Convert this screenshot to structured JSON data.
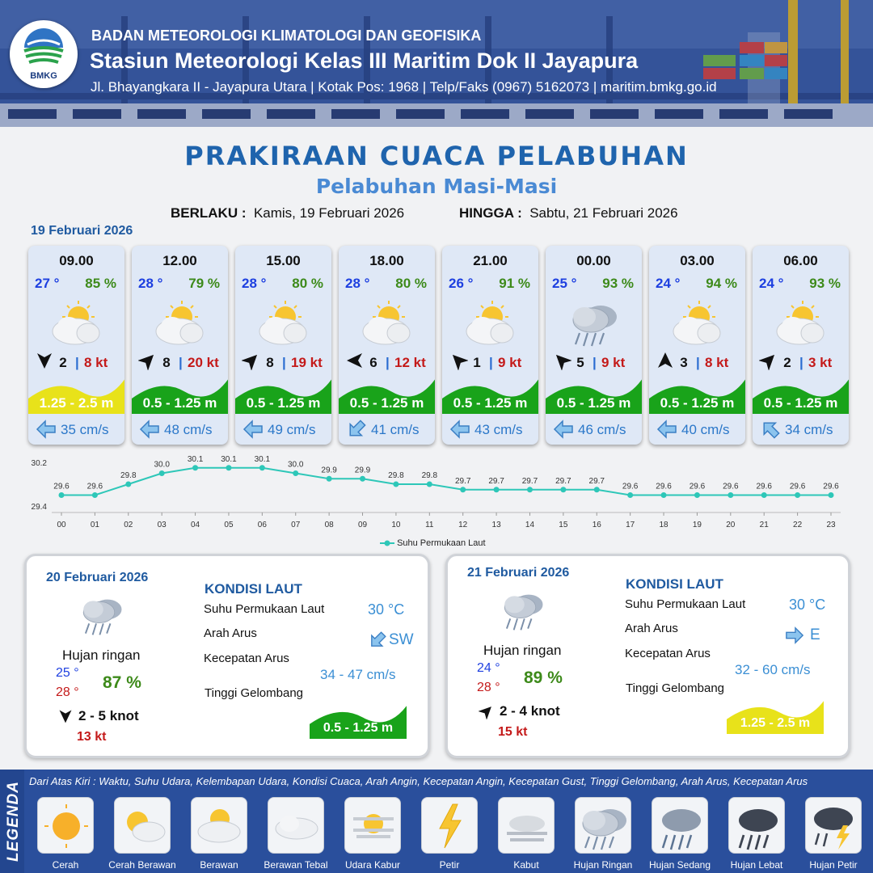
{
  "header": {
    "logo_text": "BMKG",
    "agency": "BADAN METEOROLOGI KLIMATOLOGI DAN GEOFISIKA",
    "station": "Stasiun Meteorologi Kelas III Maritim Dok II Jayapura",
    "address": "Jl. Bhayangkara II - Jayapura Utara | Kotak Pos: 1968 | Telp/Faks (0967) 5162073 | maritim.bmkg.go.id"
  },
  "title": "PRAKIRAAN CUACA PELABUHAN",
  "subtitle": "Pelabuhan Masi-Masi",
  "validity": {
    "from_label": "BERLAKU :",
    "from_value": "Kamis, 19 Februari 2026",
    "to_label": "HINGGA :",
    "to_value": "Sabtu, 21 Februari 2026"
  },
  "day1_label": "19 Februari 2026",
  "forecasts": [
    {
      "time": "09.00",
      "temp": "27 °",
      "hum": "85 %",
      "icon": "cerah-berawan",
      "wind_dir": "south-arrow",
      "wind": "2",
      "gust": "8 kt",
      "wave": "1.25 - 2.5 m",
      "wave_color": "#e8e21a",
      "cur_dir": "west-arrow",
      "current": "35 cm/s"
    },
    {
      "time": "12.00",
      "temp": "28 °",
      "hum": "79 %",
      "icon": "cerah-berawan",
      "wind_dir": "northeast-arrow",
      "wind": "8",
      "gust": "20 kt",
      "wave": "0.5 - 1.25 m",
      "wave_color": "#19a31a",
      "cur_dir": "west-arrow",
      "current": "48 cm/s"
    },
    {
      "time": "15.00",
      "temp": "28 °",
      "hum": "80 %",
      "icon": "cerah-berawan",
      "wind_dir": "northeast-arrow",
      "wind": "8",
      "gust": "19 kt",
      "wave": "0.5 - 1.25 m",
      "wave_color": "#19a31a",
      "cur_dir": "west-arrow",
      "current": "49 cm/s"
    },
    {
      "time": "18.00",
      "temp": "28 °",
      "hum": "80 %",
      "icon": "cerah-berawan",
      "wind_dir": "west-arrow",
      "wind": "6",
      "gust": "12 kt",
      "wave": "0.5 - 1.25 m",
      "wave_color": "#19a31a",
      "cur_dir": "southwest-arrow",
      "current": "41 cm/s"
    },
    {
      "time": "21.00",
      "temp": "26 °",
      "hum": "91 %",
      "icon": "cerah-berawan",
      "wind_dir": "northwest-arrow",
      "wind": "1",
      "gust": "9 kt",
      "wave": "0.5 - 1.25 m",
      "wave_color": "#19a31a",
      "cur_dir": "west-arrow",
      "current": "43 cm/s"
    },
    {
      "time": "00.00",
      "temp": "25 °",
      "hum": "93 %",
      "icon": "hujan-ringan",
      "wind_dir": "northwest-arrow",
      "wind": "5",
      "gust": "9 kt",
      "wave": "0.5 - 1.25 m",
      "wave_color": "#19a31a",
      "cur_dir": "west-arrow",
      "current": "46 cm/s"
    },
    {
      "time": "03.00",
      "temp": "24 °",
      "hum": "94 %",
      "icon": "cerah-berawan",
      "wind_dir": "north-arrow",
      "wind": "3",
      "gust": "8 kt",
      "wave": "0.5 - 1.25 m",
      "wave_color": "#19a31a",
      "cur_dir": "west-arrow",
      "current": "40 cm/s"
    },
    {
      "time": "06.00",
      "temp": "24 °",
      "hum": "93 %",
      "icon": "cerah-berawan",
      "wind_dir": "northeast-arrow",
      "wind": "2",
      "gust": "3 kt",
      "wave": "0.5 - 1.25 m",
      "wave_color": "#19a31a",
      "cur_dir": "northwest-arrow",
      "current": "34 cm/s"
    }
  ],
  "chart_data": {
    "type": "line",
    "x": [
      "00",
      "01",
      "02",
      "03",
      "04",
      "05",
      "06",
      "07",
      "08",
      "09",
      "10",
      "11",
      "12",
      "13",
      "14",
      "15",
      "16",
      "17",
      "18",
      "19",
      "20",
      "21",
      "22",
      "23"
    ],
    "series": [
      {
        "name": "Suhu Permukaan Laut",
        "values": [
          29.6,
          29.6,
          29.8,
          30.0,
          30.1,
          30.1,
          30.1,
          30.0,
          29.9,
          29.9,
          29.8,
          29.8,
          29.7,
          29.7,
          29.7,
          29.7,
          29.7,
          29.6,
          29.6,
          29.6,
          29.6,
          29.6,
          29.6,
          29.6
        ],
        "color": "#2ec7b8"
      }
    ],
    "y_ticks": [
      "29.4",
      "30.2"
    ],
    "ylim": [
      29.4,
      30.2
    ],
    "legend": "bottom"
  },
  "days": [
    {
      "date": "20 Februari 2026",
      "condition": "Hujan ringan",
      "tmin": "25 °",
      "tmax": "28 °",
      "hum": "87 %",
      "wind_arrow": "south-arrow",
      "wind": "2  - 5 knot",
      "gust": "13 kt",
      "sea_title": "KONDISI LAUT",
      "sst_label": "Suhu Permukaan Laut",
      "sst": "30 °C",
      "dir_label": "Arah Arus",
      "dir": "SW",
      "spd_label": "Kecepatan Arus",
      "spd": "34 - 47 cm/s",
      "wave_label": "Tinggi Gelombang",
      "wave": "0.5 - 1.25 m",
      "wave_color": "#19a31a"
    },
    {
      "date": "21 Februari 2026",
      "condition": "Hujan ringan",
      "tmin": "24 °",
      "tmax": "28 °",
      "hum": "89 %",
      "wind_arrow": "northeast-arrow",
      "wind": "2  - 4 knot",
      "gust": "15 kt",
      "sea_title": "KONDISI LAUT",
      "sst_label": "Suhu Permukaan Laut",
      "sst": "30 °C",
      "dir_label": "Arah Arus",
      "dir": "E",
      "spd_label": "Kecepatan Arus",
      "spd": "32  - 60 cm/s",
      "wave_label": "Tinggi Gelombang",
      "wave": "1.25 - 2.5 m",
      "wave_color": "#e8e21a"
    }
  ],
  "legend": {
    "title": "LEGENDA",
    "description": "Dari Atas Kiri : Waktu, Suhu Udara, Kelembapan Udara, Kondisi Cuaca, Arah Angin, Kecepatan Angin, Kecepatan Gust, Tinggi Gelombang, Arah Arus, Kecepatan Arus",
    "items": [
      {
        "label": "Cerah",
        "icon": "sun-icon"
      },
      {
        "label": "Cerah Berawan",
        "icon": "sun-cloud-icon"
      },
      {
        "label": "Berawan",
        "icon": "cloud-sun-icon"
      },
      {
        "label": "Berawan Tebal",
        "icon": "cloud-icon"
      },
      {
        "label": "Udara Kabur",
        "icon": "haze-icon"
      },
      {
        "label": "Petir",
        "icon": "lightning-icon"
      },
      {
        "label": "Kabut",
        "icon": "fog-icon"
      },
      {
        "label": "Hujan Ringan",
        "icon": "light-rain-icon"
      },
      {
        "label": "Hujan Sedang",
        "icon": "moderate-rain-icon"
      },
      {
        "label": "Hujan Lebat",
        "icon": "heavy-rain-icon"
      },
      {
        "label": "Hujan Petir",
        "icon": "thunderstorm-icon"
      }
    ]
  }
}
